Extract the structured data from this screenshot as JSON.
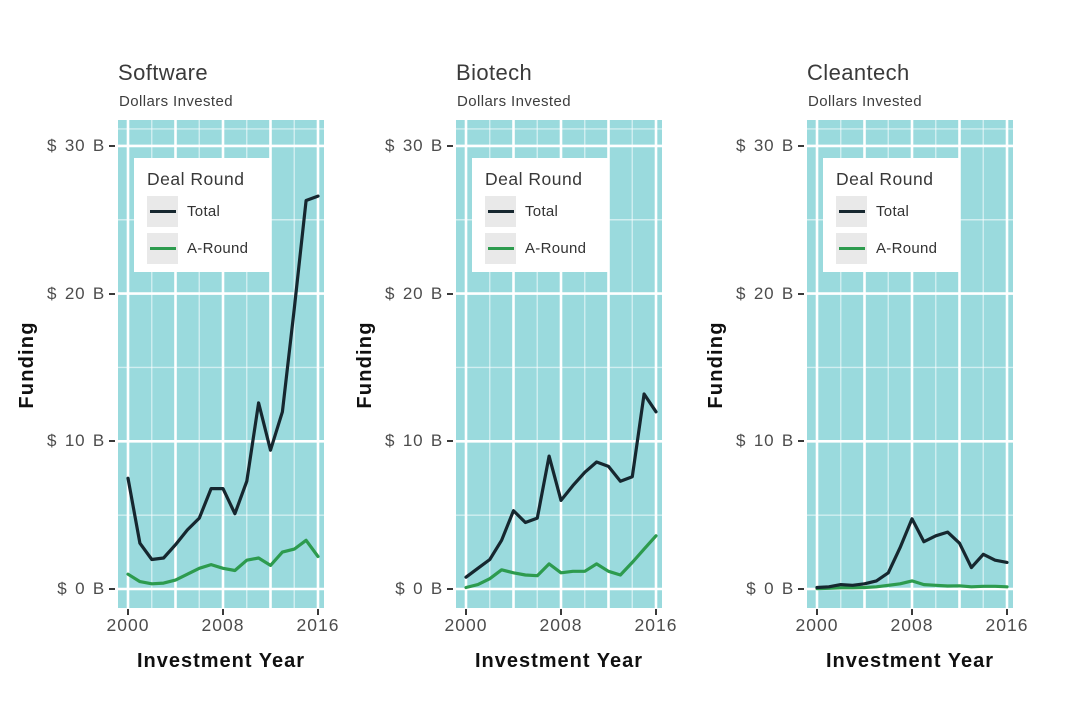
{
  "figure": {
    "background": "#ffffff"
  },
  "chart_data": [
    {
      "type": "line",
      "title": "Software",
      "subtitle": "Dollars Invested",
      "xlabel": "Investment Year",
      "ylabel": "Funding",
      "panel_bg": "#9adadd",
      "grid_color": "#ffffff",
      "legend": {
        "title": "Deal Round",
        "position": "top-left",
        "entries": [
          {
            "label": "Total",
            "color": "#16272f"
          },
          {
            "label": "A-Round",
            "color": "#2d9b4e"
          }
        ]
      },
      "x": [
        2000,
        2001,
        2002,
        2003,
        2004,
        2005,
        2006,
        2007,
        2008,
        2009,
        2010,
        2011,
        2012,
        2013,
        2014,
        2015,
        2016
      ],
      "x_ticks": {
        "values": [
          2000,
          2008,
          2016
        ],
        "labels": [
          "2000",
          "2008",
          "2016"
        ]
      },
      "x_grid_major": [
        2000,
        2004,
        2008,
        2012,
        2016
      ],
      "x_grid_minor": [
        2002,
        2006,
        2010,
        2014
      ],
      "y_ticks": {
        "values": [
          30,
          20,
          10,
          0
        ],
        "labels": [
          "$ 30 B",
          "$ 20 B",
          "$ 10 B",
          "$ 0 B"
        ]
      },
      "y_grid_major": [
        0,
        10,
        20,
        30
      ],
      "y_grid_minor": [
        5,
        15,
        25,
        31.15
      ],
      "ylim": [
        -1.3,
        31.8
      ],
      "xlim": [
        1999.2,
        2016.5
      ],
      "units": "billions USD",
      "series": [
        {
          "name": "Total",
          "color": "#16272f",
          "values": [
            7.5,
            3.1,
            2.0,
            2.1,
            3.0,
            4.0,
            4.8,
            6.8,
            6.8,
            5.1,
            7.3,
            12.6,
            9.4,
            12.0,
            19.0,
            26.3,
            26.6
          ]
        },
        {
          "name": "A-Round",
          "color": "#2d9b4e",
          "values": [
            1.0,
            0.5,
            0.35,
            0.4,
            0.6,
            1.0,
            1.4,
            1.65,
            1.4,
            1.25,
            1.95,
            2.1,
            1.6,
            2.5,
            2.7,
            3.3,
            2.2
          ]
        }
      ]
    },
    {
      "type": "line",
      "title": "Biotech",
      "subtitle": "Dollars Invested",
      "xlabel": "Investment Year",
      "ylabel": "Funding",
      "panel_bg": "#9adadd",
      "grid_color": "#ffffff",
      "legend": {
        "title": "Deal Round",
        "position": "top-left",
        "entries": [
          {
            "label": "Total",
            "color": "#16272f"
          },
          {
            "label": "A-Round",
            "color": "#2d9b4e"
          }
        ]
      },
      "x": [
        2000,
        2001,
        2002,
        2003,
        2004,
        2005,
        2006,
        2007,
        2008,
        2009,
        2010,
        2011,
        2012,
        2013,
        2014,
        2015,
        2016
      ],
      "x_ticks": {
        "values": [
          2000,
          2008,
          2016
        ],
        "labels": [
          "2000",
          "2008",
          "2016"
        ]
      },
      "x_grid_major": [
        2000,
        2004,
        2008,
        2012,
        2016
      ],
      "x_grid_minor": [
        2002,
        2006,
        2010,
        2014
      ],
      "y_ticks": {
        "values": [
          30,
          20,
          10,
          0
        ],
        "labels": [
          "$ 30 B",
          "$ 20 B",
          "$ 10 B",
          "$ 0 B"
        ]
      },
      "y_grid_major": [
        0,
        10,
        20,
        30
      ],
      "y_grid_minor": [
        5,
        15,
        25,
        31.15
      ],
      "ylim": [
        -1.3,
        31.8
      ],
      "xlim": [
        1999.2,
        2016.5
      ],
      "units": "billions USD",
      "series": [
        {
          "name": "Total",
          "color": "#16272f",
          "values": [
            0.8,
            1.4,
            2.0,
            3.3,
            5.3,
            4.5,
            4.8,
            9.0,
            6.0,
            7.0,
            7.9,
            8.6,
            8.3,
            7.3,
            7.6,
            13.2,
            12.0
          ]
        },
        {
          "name": "A-Round",
          "color": "#2d9b4e",
          "values": [
            0.1,
            0.3,
            0.7,
            1.3,
            1.1,
            0.95,
            0.9,
            1.7,
            1.1,
            1.2,
            1.2,
            1.7,
            1.2,
            0.95,
            1.8,
            2.7,
            3.6
          ]
        }
      ]
    },
    {
      "type": "line",
      "title": "Cleantech",
      "subtitle": "Dollars Invested",
      "xlabel": "Investment Year",
      "ylabel": "Funding",
      "panel_bg": "#9adadd",
      "grid_color": "#ffffff",
      "legend": {
        "title": "Deal Round",
        "position": "top-left",
        "entries": [
          {
            "label": "Total",
            "color": "#16272f"
          },
          {
            "label": "A-Round",
            "color": "#2d9b4e"
          }
        ]
      },
      "x": [
        2000,
        2001,
        2002,
        2003,
        2004,
        2005,
        2006,
        2007,
        2008,
        2009,
        2010,
        2011,
        2012,
        2013,
        2014,
        2015,
        2016
      ],
      "x_ticks": {
        "values": [
          2000,
          2008,
          2016
        ],
        "labels": [
          "2000",
          "2008",
          "2016"
        ]
      },
      "x_grid_major": [
        2000,
        2004,
        2008,
        2012,
        2016
      ],
      "x_grid_minor": [
        2002,
        2006,
        2010,
        2014
      ],
      "y_ticks": {
        "values": [
          30,
          20,
          10,
          0
        ],
        "labels": [
          "$ 30 B",
          "$ 20 B",
          "$ 10 B",
          "$ 0 B"
        ]
      },
      "y_grid_major": [
        0,
        10,
        20,
        30
      ],
      "y_grid_minor": [
        5,
        15,
        25,
        31.15
      ],
      "ylim": [
        -1.3,
        31.8
      ],
      "xlim": [
        1999.2,
        2016.5
      ],
      "units": "billions USD",
      "series": [
        {
          "name": "Total",
          "color": "#16272f",
          "values": [
            0.1,
            0.15,
            0.3,
            0.25,
            0.35,
            0.55,
            1.1,
            2.8,
            4.75,
            3.2,
            3.6,
            3.85,
            3.1,
            1.45,
            2.35,
            1.95,
            1.8
          ]
        },
        {
          "name": "A-Round",
          "color": "#2d9b4e",
          "values": [
            0.03,
            0.05,
            0.08,
            0.08,
            0.1,
            0.15,
            0.25,
            0.35,
            0.55,
            0.3,
            0.25,
            0.2,
            0.22,
            0.15,
            0.18,
            0.18,
            0.15
          ]
        }
      ]
    }
  ]
}
